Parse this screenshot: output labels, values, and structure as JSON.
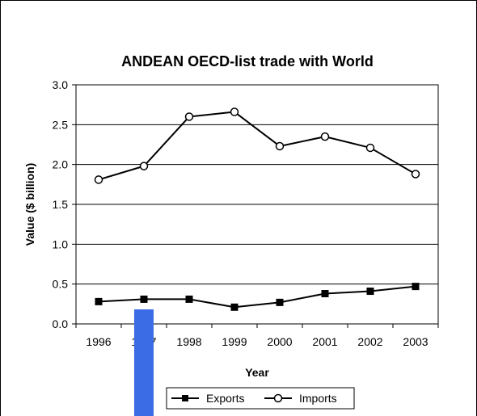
{
  "chart_data": {
    "type": "line",
    "title": "ANDEAN OECD-list trade with World",
    "xlabel": "Year",
    "ylabel": "Value ($ billion)",
    "categories": [
      "1996",
      "1997",
      "1998",
      "1999",
      "2000",
      "2001",
      "2002",
      "2003"
    ],
    "ylim": [
      0,
      3.0
    ],
    "yticks": [
      "0.0",
      "0.5",
      "1.0",
      "1.5",
      "2.0",
      "2.5",
      "3.0"
    ],
    "grid": true,
    "legend_position": "bottom",
    "series": [
      {
        "name": "Exports",
        "marker": "filled-square",
        "values": [
          0.28,
          0.31,
          0.31,
          0.21,
          0.27,
          0.38,
          0.41,
          0.47
        ]
      },
      {
        "name": "Imports",
        "marker": "open-circle",
        "values": [
          1.81,
          1.98,
          2.6,
          2.66,
          2.23,
          2.35,
          2.21,
          1.88
        ]
      }
    ],
    "colors": {
      "line": "#000000",
      "overlay_bar": "#3c6be6",
      "background": "#ffffff"
    }
  }
}
